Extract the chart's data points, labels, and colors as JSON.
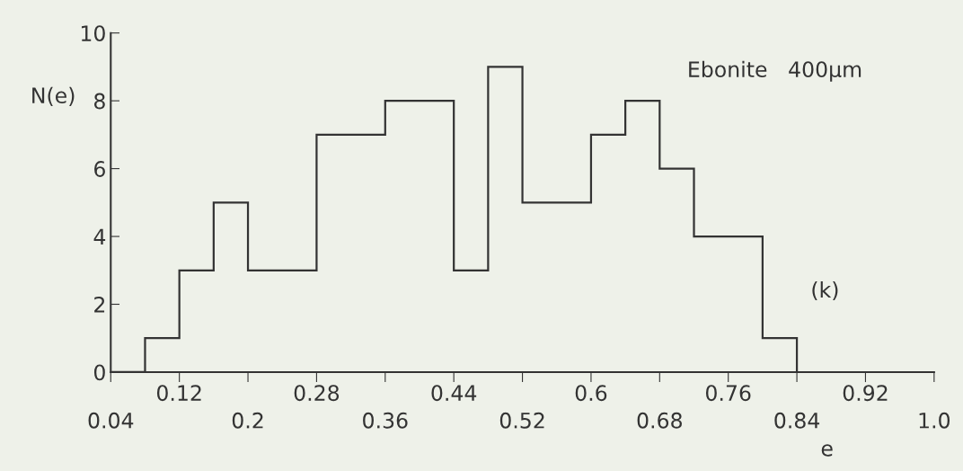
{
  "chart_data": {
    "type": "histogram",
    "xlabel": "e",
    "ylabel": "N(e)",
    "bins": [
      0.04,
      0.08,
      0.12,
      0.16,
      0.2,
      0.28,
      0.36,
      0.44,
      0.48,
      0.52,
      0.6,
      0.64,
      0.68,
      0.72,
      0.8,
      0.84
    ],
    "values": [
      0,
      1,
      3,
      5,
      3,
      7,
      8,
      3,
      9,
      5,
      7,
      8,
      6,
      4,
      1
    ],
    "color": "#333333",
    "xlim": [
      0.04,
      1.0
    ],
    "xticks": [
      0.04,
      0.2,
      0.36,
      0.52,
      0.68,
      0.84,
      {
        "value": 1.0,
        "label": "1.0"
      }
    ],
    "x2lim": [
      0.04,
      1.0
    ],
    "x2ticks": [
      0.12,
      0.28,
      0.44,
      0.6,
      0.76,
      0.92
    ],
    "ylim": [
      0,
      10
    ],
    "yticks": [
      0,
      2,
      4,
      6,
      8,
      10
    ],
    "annotations": [
      "Ebonite   400μm",
      "(k)"
    ],
    "grid": false,
    "legend": false
  }
}
